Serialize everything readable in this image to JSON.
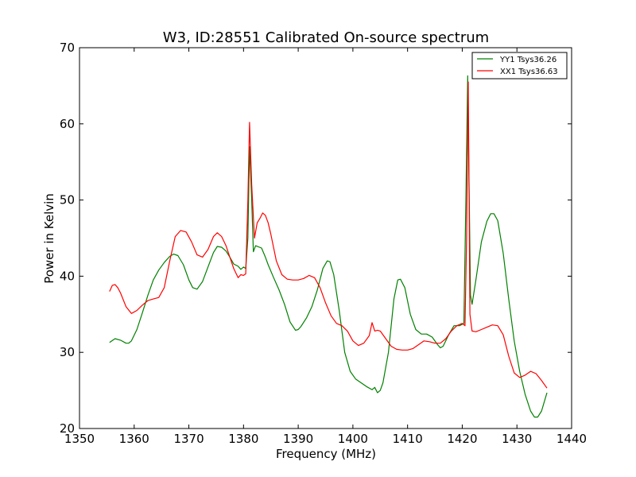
{
  "chart_data": {
    "type": "line",
    "title": "W3, ID:28551 Calibrated On-source spectrum",
    "xlabel": "Frequency (MHz)",
    "ylabel": "Power in Kelvin",
    "xlim": [
      1350,
      1440
    ],
    "ylim": [
      20,
      70
    ],
    "xticks": [
      1350,
      1360,
      1370,
      1380,
      1390,
      1400,
      1410,
      1420,
      1430,
      1440
    ],
    "yticks": [
      20,
      30,
      40,
      50,
      60,
      70
    ],
    "grid": false,
    "legend_position": "top-right",
    "series": [
      {
        "name": "YY1 Tsys36.26",
        "color": "#008000",
        "x": [
          1355.5,
          1356.5,
          1357.5,
          1358.5,
          1359.0,
          1359.5,
          1360.5,
          1361.5,
          1362.5,
          1363.5,
          1364.5,
          1365.5,
          1366.5,
          1367.2,
          1368.0,
          1369.0,
          1370.0,
          1370.7,
          1371.5,
          1372.5,
          1373.5,
          1374.5,
          1375.2,
          1376.0,
          1376.8,
          1377.5,
          1378.2,
          1379.0,
          1379.5,
          1380.0,
          1380.4,
          1380.8,
          1381.1,
          1381.5,
          1381.8,
          1382.2,
          1383.3,
          1384.0,
          1384.5,
          1385.5,
          1386.5,
          1387.5,
          1388.5,
          1389.5,
          1390.0,
          1390.5,
          1391.5,
          1392.5,
          1393.5,
          1394.5,
          1395.3,
          1395.8,
          1396.5,
          1397.5,
          1398.5,
          1399.5,
          1400.5,
          1401.5,
          1402.5,
          1403.5,
          1404.0,
          1404.5,
          1405.0,
          1405.5,
          1406.5,
          1407.5,
          1408.2,
          1408.7,
          1409.5,
          1410.5,
          1411.5,
          1412.5,
          1413.5,
          1414.5,
          1415.5,
          1416.0,
          1416.5,
          1417.5,
          1418.5,
          1419.5,
          1420.3,
          1420.7,
          1421.0,
          1421.5,
          1421.8,
          1422.5,
          1423.5,
          1424.5,
          1425.2,
          1425.8,
          1426.5,
          1427.5,
          1428.5,
          1429.5,
          1430.5,
          1431.5,
          1432.5,
          1433.2,
          1433.8,
          1434.5,
          1435.5
        ],
        "y": [
          31.3,
          31.8,
          31.6,
          31.2,
          31.2,
          31.5,
          33.0,
          35.2,
          37.5,
          39.5,
          40.8,
          41.8,
          42.6,
          42.9,
          42.7,
          41.5,
          39.5,
          38.5,
          38.3,
          39.3,
          41.2,
          43.1,
          43.9,
          43.8,
          43.3,
          42.5,
          41.6,
          41.3,
          40.9,
          41.2,
          41.0,
          45.0,
          57.0,
          50.0,
          43.2,
          44.0,
          43.7,
          42.5,
          41.5,
          39.8,
          38.2,
          36.3,
          34.0,
          32.9,
          33.0,
          33.4,
          34.5,
          36.0,
          38.2,
          41.0,
          42.0,
          41.9,
          40.2,
          35.5,
          30.0,
          27.5,
          26.5,
          26.0,
          25.5,
          25.1,
          25.4,
          24.7,
          25.0,
          26.0,
          30.0,
          37.0,
          39.5,
          39.6,
          38.5,
          35.0,
          33.0,
          32.4,
          32.4,
          32.0,
          31.0,
          30.6,
          30.8,
          32.3,
          33.5,
          33.5,
          33.8,
          52.0,
          66.3,
          37.5,
          36.3,
          39.5,
          44.5,
          47.2,
          48.2,
          48.2,
          47.3,
          43.0,
          37.0,
          31.5,
          27.5,
          24.5,
          22.3,
          21.5,
          21.5,
          22.3,
          24.7
        ]
      },
      {
        "name": "XX1 Tsys36.63",
        "color": "#ff0000",
        "x": [
          1355.5,
          1356.0,
          1356.5,
          1357.0,
          1357.5,
          1358.5,
          1359.5,
          1360.5,
          1361.5,
          1362.5,
          1363.5,
          1364.5,
          1365.5,
          1366.5,
          1367.5,
          1368.5,
          1369.5,
          1370.5,
          1371.5,
          1372.5,
          1373.5,
          1374.5,
          1375.2,
          1376.0,
          1376.8,
          1377.5,
          1378.2,
          1379.0,
          1379.5,
          1380.0,
          1380.4,
          1380.8,
          1381.1,
          1381.5,
          1382.0,
          1382.5,
          1383.0,
          1383.5,
          1384.0,
          1384.5,
          1385.0,
          1386.0,
          1387.0,
          1388.0,
          1389.0,
          1390.0,
          1391.0,
          1392.0,
          1393.0,
          1394.0,
          1395.0,
          1396.0,
          1397.0,
          1398.0,
          1399.0,
          1400.0,
          1401.0,
          1402.0,
          1403.0,
          1403.5,
          1404.0,
          1404.5,
          1405.0,
          1406.0,
          1407.0,
          1408.0,
          1409.0,
          1410.0,
          1411.0,
          1412.0,
          1413.0,
          1414.0,
          1415.0,
          1416.0,
          1417.0,
          1418.0,
          1419.0,
          1420.0,
          1420.5,
          1420.8,
          1421.1,
          1421.4,
          1421.8,
          1422.5,
          1423.5,
          1424.5,
          1425.5,
          1426.5,
          1427.5,
          1428.5,
          1429.5,
          1430.5,
          1431.5,
          1432.5,
          1433.5,
          1434.5,
          1435.5
        ],
        "y": [
          38.0,
          38.8,
          38.9,
          38.5,
          37.8,
          36.0,
          35.1,
          35.5,
          36.2,
          36.8,
          37.0,
          37.2,
          38.5,
          42.0,
          45.2,
          46.0,
          45.8,
          44.5,
          42.8,
          42.5,
          43.5,
          45.2,
          45.7,
          45.2,
          44.0,
          42.5,
          41.0,
          39.8,
          40.2,
          40.1,
          40.3,
          50.0,
          60.2,
          52.0,
          45.0,
          47.0,
          47.6,
          48.3,
          48.0,
          47.0,
          45.5,
          42.0,
          40.2,
          39.6,
          39.5,
          39.5,
          39.7,
          40.1,
          39.8,
          38.5,
          36.5,
          34.8,
          33.8,
          33.5,
          32.8,
          31.5,
          30.9,
          31.2,
          32.2,
          33.9,
          32.8,
          32.9,
          32.8,
          31.8,
          30.8,
          30.4,
          30.3,
          30.3,
          30.5,
          31.0,
          31.5,
          31.4,
          31.2,
          31.2,
          31.8,
          32.8,
          33.5,
          33.8,
          33.5,
          45.0,
          65.5,
          35.0,
          32.8,
          32.7,
          33.0,
          33.3,
          33.6,
          33.5,
          32.3,
          29.5,
          27.3,
          26.7,
          27.0,
          27.5,
          27.2,
          26.3,
          25.3
        ]
      }
    ]
  }
}
